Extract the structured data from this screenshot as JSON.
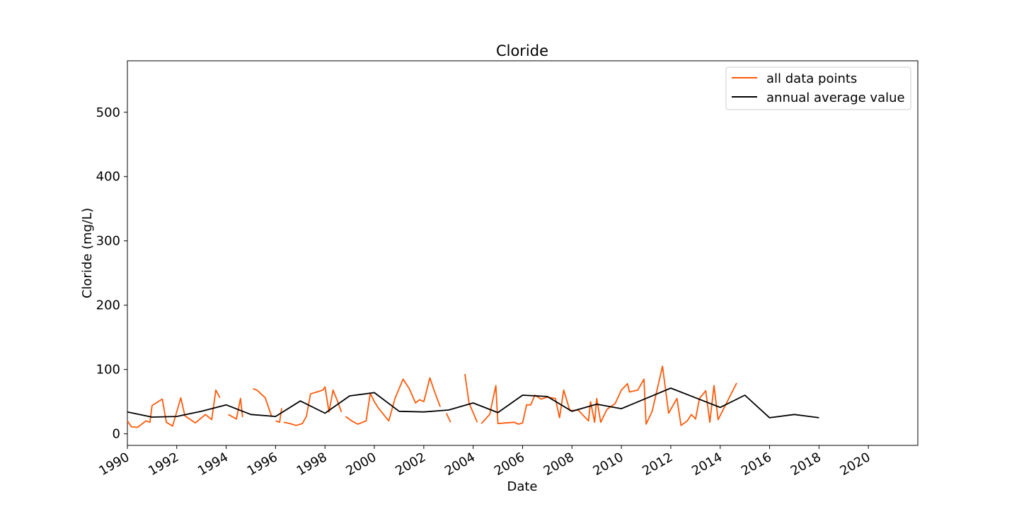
{
  "chart_data": {
    "type": "line",
    "title": "Cloride",
    "xlabel": "Date",
    "ylabel": "Cloride (mg/L)",
    "xlim": [
      "1990-01-01",
      "2022-01-01"
    ],
    "ylim": [
      -18,
      580
    ],
    "x_ticks": [
      "1990",
      "1992",
      "1994",
      "1996",
      "1998",
      "2000",
      "2002",
      "2004",
      "2006",
      "2008",
      "2010",
      "2012",
      "2014",
      "2016",
      "2018",
      "2020"
    ],
    "y_ticks": [
      0,
      100,
      200,
      300,
      400,
      500
    ],
    "grid": false,
    "legend": {
      "position": "top-right",
      "entries": [
        {
          "label": "all data points",
          "color": "#ff5a0a"
        },
        {
          "label": "annual average value",
          "color": "#000000"
        }
      ]
    },
    "series": [
      {
        "name": "all data points",
        "color": "#ff5a0a",
        "segments": [
          [
            [
              "1990-01-01",
              20
            ],
            [
              "1990-03-01",
              11
            ],
            [
              "1990-06-01",
              10
            ],
            [
              "1990-10-01",
              20
            ],
            [
              "1990-12-01",
              18
            ],
            [
              "1991-01-01",
              44
            ],
            [
              "1991-06-01",
              54
            ],
            [
              "1991-08-01",
              18
            ],
            [
              "1991-11-01",
              12
            ],
            [
              "1992-03-01",
              56
            ],
            [
              "1992-05-01",
              28
            ],
            [
              "1992-10-01",
              17
            ],
            [
              "1993-03-01",
              30
            ],
            [
              "1993-06-01",
              22
            ],
            [
              "1993-08-01",
              68
            ],
            [
              "1993-10-01",
              56
            ]
          ],
          [
            [
              "1994-02-01",
              30
            ],
            [
              "1994-06-01",
              23
            ],
            [
              "1994-08-01",
              55
            ],
            [
              "1994-09-01",
              26
            ]
          ],
          [
            [
              "1995-02-01",
              70
            ],
            [
              "1995-04-01",
              68
            ],
            [
              "1995-08-01",
              56
            ],
            [
              "1995-11-01",
              28
            ]
          ],
          [
            [
              "1996-01-01",
              20
            ],
            [
              "1996-03-01",
              18
            ],
            [
              "1996-04-01",
              40
            ]
          ],
          [
            [
              "1996-05-01",
              18
            ],
            [
              "1996-08-01",
              16
            ],
            [
              "1996-11-01",
              13
            ],
            [
              "1997-02-01",
              16
            ],
            [
              "1997-04-01",
              27
            ],
            [
              "1997-06-01",
              62
            ],
            [
              "1997-09-01",
              65
            ],
            [
              "1997-12-01",
              68
            ],
            [
              "1998-01-01",
              73
            ],
            [
              "1998-03-01",
              34
            ],
            [
              "1998-05-01",
              68
            ],
            [
              "1998-07-01",
              52
            ],
            [
              "1998-09-01",
              34
            ]
          ],
          [
            [
              "1998-11-01",
              27
            ],
            [
              "1999-02-01",
              20
            ],
            [
              "1999-05-01",
              15
            ],
            [
              "1999-09-01",
              20
            ],
            [
              "1999-11-01",
              63
            ],
            [
              "2000-01-01",
              50
            ],
            [
              "2000-03-01",
              40
            ],
            [
              "2000-08-01",
              20
            ],
            [
              "2000-11-01",
              55
            ],
            [
              "2001-03-01",
              85
            ],
            [
              "2001-06-01",
              70
            ],
            [
              "2001-09-01",
              48
            ],
            [
              "2001-11-01",
              53
            ],
            [
              "2002-01-01",
              50
            ],
            [
              "2002-04-01",
              87
            ],
            [
              "2002-06-01",
              68
            ],
            [
              "2002-09-01",
              42
            ]
          ],
          [
            [
              "2002-12-01",
              32
            ],
            [
              "2003-02-01",
              18
            ]
          ],
          [
            [
              "2003-09-01",
              93
            ],
            [
              "2003-11-01",
              48
            ],
            [
              "2004-03-01",
              18
            ]
          ],
          [
            [
              "2004-05-01",
              16
            ],
            [
              "2004-09-01",
              30
            ],
            [
              "2004-12-01",
              75
            ],
            [
              "2005-01-01",
              16
            ],
            [
              "2005-05-01",
              17
            ],
            [
              "2005-09-01",
              18
            ],
            [
              "2005-11-01",
              15
            ],
            [
              "2006-01-01",
              17
            ],
            [
              "2006-03-01",
              45
            ],
            [
              "2006-05-01",
              45
            ],
            [
              "2006-07-01",
              60
            ],
            [
              "2006-10-01",
              54
            ],
            [
              "2007-01-01",
              57
            ],
            [
              "2007-05-01",
              55
            ],
            [
              "2007-07-01",
              25
            ],
            [
              "2007-09-01",
              68
            ],
            [
              "2007-12-01",
              36
            ],
            [
              "2008-04-01",
              37
            ],
            [
              "2008-09-01",
              20
            ],
            [
              "2008-10-01",
              50
            ],
            [
              "2008-12-01",
              18
            ],
            [
              "2009-01-01",
              55
            ],
            [
              "2009-03-01",
              18
            ],
            [
              "2009-06-01",
              38
            ],
            [
              "2009-10-01",
              47
            ],
            [
              "2010-01-01",
              68
            ],
            [
              "2010-04-01",
              78
            ],
            [
              "2010-05-01",
              65
            ],
            [
              "2010-09-01",
              68
            ],
            [
              "2010-12-01",
              85
            ],
            [
              "2011-01-01",
              15
            ],
            [
              "2011-04-01",
              35
            ],
            [
              "2011-09-01",
              105
            ],
            [
              "2011-12-01",
              32
            ],
            [
              "2012-04-01",
              55
            ],
            [
              "2012-06-01",
              13
            ],
            [
              "2012-09-01",
              20
            ],
            [
              "2012-11-01",
              30
            ],
            [
              "2013-01-01",
              23
            ],
            [
              "2013-03-01",
              55
            ],
            [
              "2013-06-01",
              67
            ],
            [
              "2013-08-01",
              18
            ],
            [
              "2013-10-01",
              75
            ],
            [
              "2013-12-01",
              22
            ],
            [
              "2014-09-01",
              79
            ]
          ]
        ]
      },
      {
        "name": "annual average value",
        "color": "#000000",
        "x": [
          "1990-01-01",
          "1991-01-01",
          "1992-01-01",
          "1993-01-01",
          "1994-01-01",
          "1995-01-01",
          "1996-01-01",
          "1997-01-01",
          "1998-01-01",
          "1999-01-01",
          "2000-01-01",
          "2001-01-01",
          "2002-01-01",
          "2003-01-01",
          "2004-01-01",
          "2005-01-01",
          "2006-01-01",
          "2007-01-01",
          "2008-01-01",
          "2009-01-01",
          "2010-01-01",
          "2011-01-01",
          "2012-01-01",
          "2013-01-01",
          "2014-01-01",
          "2015-01-01",
          "2016-01-01",
          "2017-01-01",
          "2018-01-01"
        ],
        "values": [
          34,
          26,
          27,
          35,
          45,
          30,
          27,
          51,
          32,
          59,
          64,
          35,
          34,
          37,
          48,
          33,
          60,
          58,
          35,
          46,
          39,
          55,
          71,
          56,
          41,
          60,
          25,
          30,
          25
        ]
      }
    ]
  }
}
